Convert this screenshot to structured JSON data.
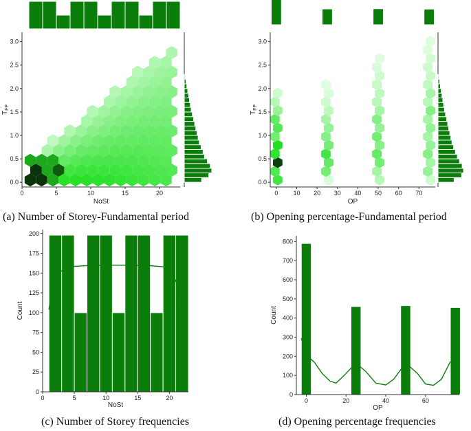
{
  "captions": {
    "a": "(a) Number of Storey-Fundamental period",
    "b": "(b) Opening percentage-Fundamental period",
    "c": "(c) Number of Storey frequencies",
    "d": "(d) Opening percentage frequencies"
  },
  "colors": {
    "bar": "#0a7d0a",
    "edge": "#ffffff",
    "hex_low": "#e8ffe8",
    "hex_mid": "#22e022",
    "hex_high": "#0a2a0a"
  },
  "chart_data": [
    {
      "id": "a",
      "type": "heatmap",
      "xlabel": "NoSt",
      "ylabel": "T",
      "ylabel_sub": "FP",
      "xlim": [
        0,
        23
      ],
      "ylim": [
        -0.1,
        3.2
      ],
      "xticks": [
        0,
        5,
        10,
        15,
        20
      ],
      "yticks": [
        0.0,
        0.5,
        1.0,
        1.5,
        2.0,
        2.5,
        3.0
      ],
      "ytick_labels": [
        "0.0",
        "0.5",
        "1.0",
        "1.5",
        "2.0",
        "2.5",
        "3.0"
      ],
      "marginal_x": {
        "edges": [
          1,
          3,
          5,
          7,
          9,
          11,
          13,
          15,
          17,
          19,
          21,
          23
        ],
        "values": [
          200,
          200,
          100,
          200,
          200,
          100,
          200,
          200,
          100,
          200,
          200
        ]
      },
      "marginal_y": {
        "edges": [
          0.0,
          0.1,
          0.2,
          0.3,
          0.4,
          0.5,
          0.6,
          0.7,
          0.8,
          0.9,
          1.0,
          1.1,
          1.2,
          1.3,
          1.4,
          1.5,
          1.6,
          1.7,
          1.8,
          1.9,
          2.0,
          2.1,
          2.2,
          2.3
        ],
        "values": [
          60,
          85,
          95,
          90,
          80,
          70,
          65,
          58,
          52,
          48,
          44,
          40,
          36,
          32,
          28,
          24,
          21,
          18,
          15,
          12,
          9,
          6,
          3
        ]
      }
    },
    {
      "id": "b",
      "type": "heatmap",
      "xlabel": "OP",
      "ylabel": "T",
      "ylabel_sub": "FP",
      "xlim": [
        -3,
        78
      ],
      "ylim": [
        -0.1,
        3.2
      ],
      "xticks": [
        0,
        10,
        20,
        30,
        40,
        50,
        60,
        70
      ],
      "yticks": [
        0.0,
        0.5,
        1.0,
        1.5,
        2.0,
        2.5,
        3.0
      ],
      "ytick_labels": [
        "0.0",
        "0.5",
        "1.0",
        "1.5",
        "2.0",
        "2.5",
        "3.0"
      ],
      "marginal_x": {
        "bars": [
          [
            -2.5,
            2.5,
            790
          ],
          [
            22.5,
            27.5,
            460
          ],
          [
            47.5,
            52.5,
            465
          ],
          [
            72.5,
            77.5,
            455
          ]
        ]
      },
      "marginal_y": {
        "edges": [
          0.0,
          0.1,
          0.2,
          0.3,
          0.4,
          0.5,
          0.6,
          0.7,
          0.8,
          0.9,
          1.0,
          1.1,
          1.2,
          1.3,
          1.4,
          1.5,
          1.6,
          1.7,
          1.8,
          1.9,
          2.0,
          2.1,
          2.2,
          2.3
        ],
        "values": [
          60,
          88,
          95,
          90,
          80,
          72,
          65,
          58,
          52,
          48,
          44,
          40,
          36,
          32,
          28,
          24,
          21,
          18,
          15,
          12,
          9,
          6,
          3
        ]
      }
    },
    {
      "id": "c",
      "type": "bar",
      "xlabel": "NoSt",
      "ylabel": "Count",
      "xlim": [
        0,
        23
      ],
      "ylim": [
        0,
        205
      ],
      "xticks": [
        0,
        5,
        10,
        15,
        20
      ],
      "yticks": [
        0,
        25,
        50,
        75,
        100,
        125,
        150,
        175,
        200
      ],
      "bins": [
        [
          1,
          3,
          198
        ],
        [
          3,
          5,
          198
        ],
        [
          5,
          7,
          100
        ],
        [
          7,
          9,
          198
        ],
        [
          9,
          11,
          198
        ],
        [
          11,
          13,
          100
        ],
        [
          13,
          15,
          198
        ],
        [
          15,
          17,
          198
        ],
        [
          17,
          19,
          100
        ],
        [
          19,
          21,
          198
        ],
        [
          21,
          23,
          198
        ]
      ],
      "kde_x": [
        1,
        1.5,
        2.5,
        4,
        8,
        12,
        16,
        19,
        20.5,
        21.5,
        22
      ],
      "kde_y": [
        104,
        130,
        150,
        158,
        160,
        160,
        160,
        158,
        150,
        130,
        104
      ]
    },
    {
      "id": "d",
      "type": "bar",
      "xlabel": "OP",
      "ylabel": "Count",
      "xlim": [
        -5,
        77
      ],
      "ylim": [
        0,
        830
      ],
      "xticks": [
        0,
        20,
        40,
        60
      ],
      "yticks": [
        0,
        100,
        200,
        300,
        400,
        500,
        600,
        700,
        800
      ],
      "bins": [
        [
          -2.5,
          2.5,
          790
        ],
        [
          22.5,
          27.5,
          460
        ],
        [
          47.5,
          52.5,
          465
        ],
        [
          72.5,
          77.5,
          455
        ]
      ],
      "kde_x": [
        -2.5,
        0,
        4,
        8,
        12,
        15,
        19,
        25,
        30,
        35,
        40,
        44,
        50,
        56,
        60,
        64,
        68,
        72.5
      ],
      "kde_y": [
        295,
        205,
        170,
        110,
        70,
        60,
        100,
        165,
        120,
        60,
        50,
        80,
        165,
        110,
        55,
        48,
        80,
        172
      ]
    }
  ]
}
